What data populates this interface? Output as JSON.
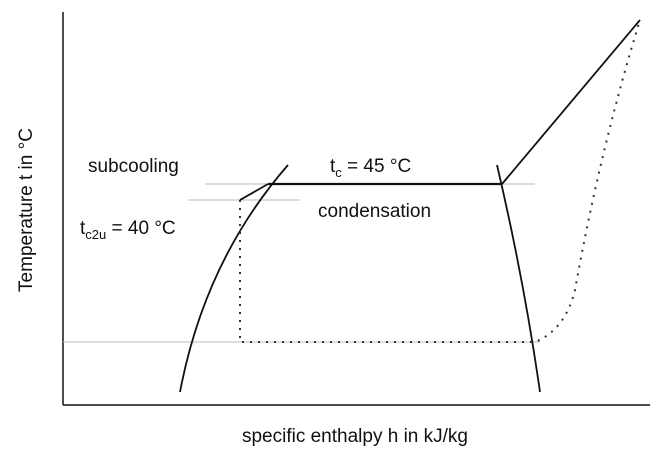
{
  "axes": {
    "x_label": "specific enthalpy h in kJ/kg",
    "y_label": "Temperature t in °C"
  },
  "labels": {
    "subcooling": "subcooling",
    "condensation": "condensation",
    "tc": {
      "main": "t",
      "sub": "c",
      "rest": " = 45 °C"
    },
    "tc2u": {
      "main": "t",
      "sub": "c2u",
      "rest": " = 40 °C"
    }
  }
}
